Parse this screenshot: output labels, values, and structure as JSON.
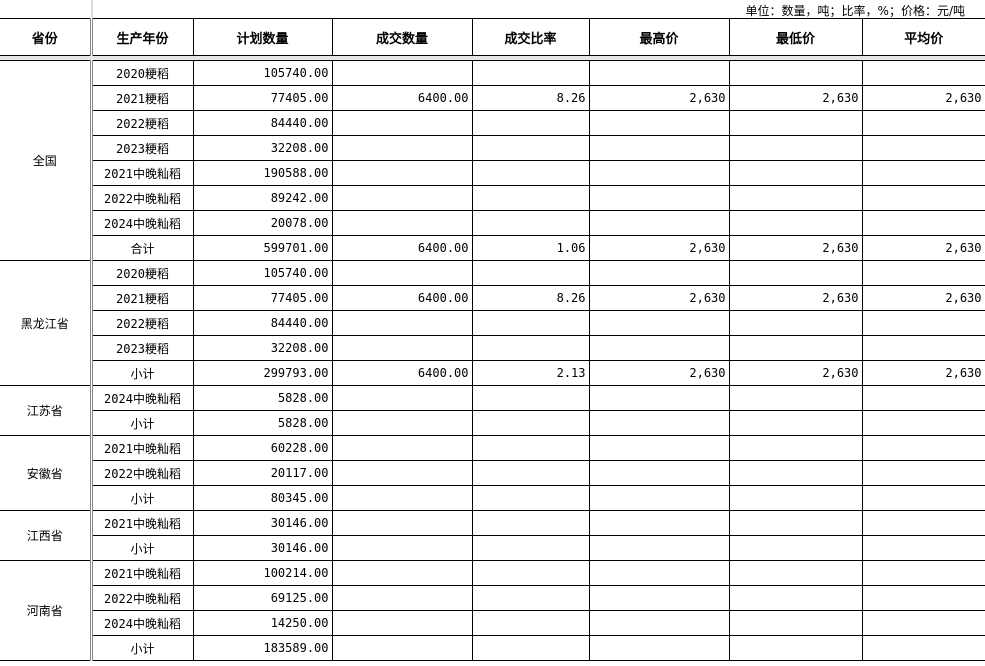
{
  "unit_note": "单位：数量，吨；比率，%；价格：元/吨",
  "columns": [
    "省份",
    "生产年份",
    "计划数量",
    "成交数量",
    "成交比率",
    "最高价",
    "最低价",
    "平均价"
  ],
  "groups": [
    {
      "province": "全国",
      "rows": [
        [
          "2020粳稻",
          "105740.00",
          "",
          "",
          "",
          "",
          ""
        ],
        [
          "2021粳稻",
          "77405.00",
          "6400.00",
          "8.26",
          "2,630",
          "2,630",
          "2,630"
        ],
        [
          "2022粳稻",
          "84440.00",
          "",
          "",
          "",
          "",
          ""
        ],
        [
          "2023粳稻",
          "32208.00",
          "",
          "",
          "",
          "",
          ""
        ],
        [
          "2021中晚籼稻",
          "190588.00",
          "",
          "",
          "",
          "",
          ""
        ],
        [
          "2022中晚籼稻",
          "89242.00",
          "",
          "",
          "",
          "",
          ""
        ],
        [
          "2024中晚籼稻",
          "20078.00",
          "",
          "",
          "",
          "",
          ""
        ],
        [
          "合计",
          "599701.00",
          "6400.00",
          "1.06",
          "2,630",
          "2,630",
          "2,630"
        ]
      ]
    },
    {
      "province": "黑龙江省",
      "rows": [
        [
          "2020粳稻",
          "105740.00",
          "",
          "",
          "",
          "",
          ""
        ],
        [
          "2021粳稻",
          "77405.00",
          "6400.00",
          "8.26",
          "2,630",
          "2,630",
          "2,630"
        ],
        [
          "2022粳稻",
          "84440.00",
          "",
          "",
          "",
          "",
          ""
        ],
        [
          "2023粳稻",
          "32208.00",
          "",
          "",
          "",
          "",
          ""
        ],
        [
          "小计",
          "299793.00",
          "6400.00",
          "2.13",
          "2,630",
          "2,630",
          "2,630"
        ]
      ]
    },
    {
      "province": "江苏省",
      "rows": [
        [
          "2024中晚籼稻",
          "5828.00",
          "",
          "",
          "",
          "",
          ""
        ],
        [
          "小计",
          "5828.00",
          "",
          "",
          "",
          "",
          ""
        ]
      ]
    },
    {
      "province": "安徽省",
      "rows": [
        [
          "2021中晚籼稻",
          "60228.00",
          "",
          "",
          "",
          "",
          ""
        ],
        [
          "2022中晚籼稻",
          "20117.00",
          "",
          "",
          "",
          "",
          ""
        ],
        [
          "小计",
          "80345.00",
          "",
          "",
          "",
          "",
          ""
        ]
      ]
    },
    {
      "province": "江西省",
      "rows": [
        [
          "2021中晚籼稻",
          "30146.00",
          "",
          "",
          "",
          "",
          ""
        ],
        [
          "小计",
          "30146.00",
          "",
          "",
          "",
          "",
          ""
        ]
      ]
    },
    {
      "province": "河南省",
      "rows": [
        [
          "2021中晚籼稻",
          "100214.00",
          "",
          "",
          "",
          "",
          ""
        ],
        [
          "2022中晚籼稻",
          "69125.00",
          "",
          "",
          "",
          "",
          ""
        ],
        [
          "2024中晚籼稻",
          "14250.00",
          "",
          "",
          "",
          "",
          ""
        ],
        [
          "小计",
          "183589.00",
          "",
          "",
          "",
          "",
          ""
        ]
      ]
    }
  ]
}
